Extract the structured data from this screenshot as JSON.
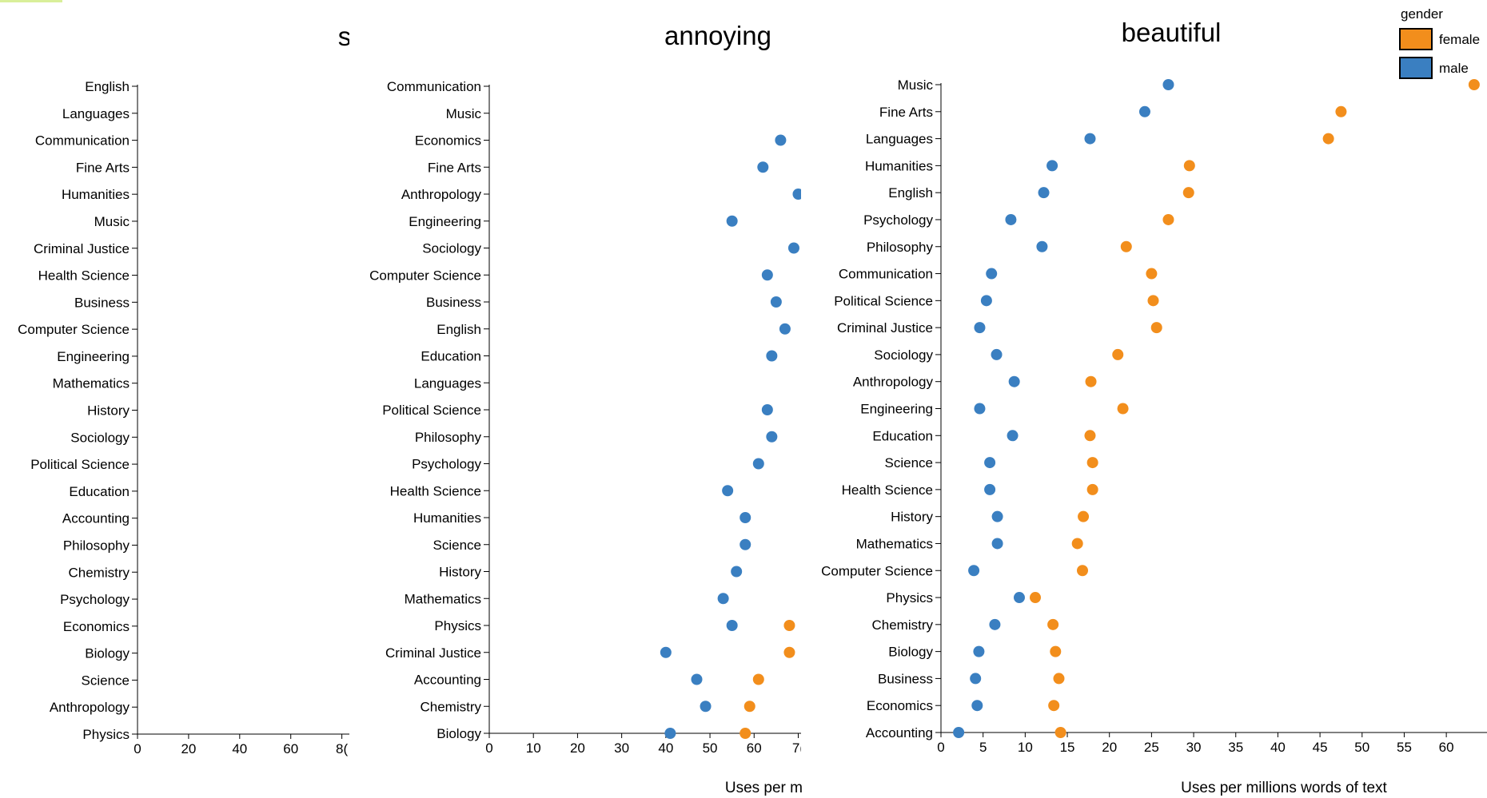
{
  "legend": {
    "title": "gender",
    "items": [
      {
        "label": "female",
        "color": "#f28e1c"
      },
      {
        "label": "male",
        "color": "#3a7fc1"
      }
    ]
  },
  "chart_data": [
    {
      "type": "scatter",
      "title": "s",
      "xlabel": "",
      "ylabel": "",
      "xlim": [
        0,
        82
      ],
      "xticks": [
        0,
        20,
        40,
        60,
        "8("
      ],
      "grid": false,
      "categories": [
        "English",
        "Languages",
        "Communication",
        "Fine Arts",
        "Humanities",
        "Music",
        "Criminal Justice",
        "Health Science",
        "Business",
        "Computer Science",
        "Engineering",
        "Mathematics",
        "History",
        "Sociology",
        "Political Science",
        "Education",
        "Accounting",
        "Philosophy",
        "Chemistry",
        "Psychology",
        "Economics",
        "Biology",
        "Science",
        "Anthropology",
        "Physics"
      ],
      "series": [
        {
          "name": "male",
          "color": "#3a7fc1",
          "values": [
            null,
            null,
            null,
            null,
            null,
            null,
            null,
            null,
            null,
            null,
            null,
            null,
            null,
            null,
            null,
            null,
            null,
            null,
            null,
            null,
            null,
            null,
            null,
            null,
            null
          ]
        },
        {
          "name": "female",
          "color": "#f28e1c",
          "values": [
            null,
            null,
            null,
            null,
            null,
            null,
            null,
            null,
            null,
            null,
            null,
            null,
            null,
            null,
            null,
            null,
            null,
            null,
            null,
            null,
            null,
            null,
            null,
            null,
            null
          ]
        }
      ]
    },
    {
      "type": "scatter",
      "title": "annoying",
      "xlabel": "Uses per m",
      "ylabel": "",
      "xlim": [
        0,
        71
      ],
      "xticks": [
        0,
        10,
        20,
        30,
        40,
        50,
        60,
        "7("
      ],
      "grid": false,
      "categories": [
        "Communication",
        "Music",
        "Economics",
        "Fine Arts",
        "Anthropology",
        "Engineering",
        "Sociology",
        "Computer Science",
        "Business",
        "English",
        "Education",
        "Languages",
        "Political Science",
        "Philosophy",
        "Psychology",
        "Health Science",
        "Humanities",
        "Science",
        "History",
        "Mathematics",
        "Physics",
        "Criminal Justice",
        "Accounting",
        "Chemistry",
        "Biology"
      ],
      "series": [
        {
          "name": "male",
          "color": "#3a7fc1",
          "values": [
            null,
            null,
            66,
            62,
            70,
            55,
            69,
            63,
            65,
            67,
            64,
            null,
            63,
            64,
            61,
            54,
            58,
            58,
            56,
            53,
            55,
            40,
            47,
            49,
            41
          ]
        },
        {
          "name": "female",
          "color": "#f28e1c",
          "values": [
            null,
            null,
            null,
            null,
            null,
            null,
            null,
            null,
            null,
            null,
            null,
            null,
            null,
            null,
            null,
            null,
            null,
            null,
            null,
            null,
            68,
            68,
            61,
            59,
            58
          ]
        }
      ]
    },
    {
      "type": "scatter",
      "title": "beautiful",
      "xlabel": "Uses per millions words of text",
      "ylabel": "",
      "xlim": [
        0,
        63.5
      ],
      "xticks": [
        0,
        5,
        10,
        15,
        20,
        25,
        30,
        35,
        40,
        45,
        50,
        55,
        60
      ],
      "grid": false,
      "categories": [
        "Music",
        "Fine Arts",
        "Languages",
        "Humanities",
        "English",
        "Psychology",
        "Philosophy",
        "Communication",
        "Political Science",
        "Criminal Justice",
        "Sociology",
        "Anthropology",
        "Engineering",
        "Education",
        "Science",
        "Health Science",
        "History",
        "Mathematics",
        "Computer Science",
        "Physics",
        "Chemistry",
        "Biology",
        "Business",
        "Economics",
        "Accounting"
      ],
      "series": [
        {
          "name": "male",
          "color": "#3a7fc1",
          "values": [
            27,
            24.2,
            17.7,
            13.2,
            12.2,
            8.3,
            12,
            6,
            5.4,
            4.6,
            6.6,
            8.7,
            4.6,
            8.5,
            5.8,
            5.8,
            6.7,
            6.7,
            3.9,
            9.3,
            6.4,
            4.5,
            4.1,
            4.3,
            2.1
          ]
        },
        {
          "name": "female",
          "color": "#f28e1c",
          "values": [
            63.3,
            47.5,
            46,
            29.5,
            29.4,
            27,
            22,
            25,
            25.2,
            25.6,
            21,
            17.8,
            21.6,
            17.7,
            18,
            18,
            16.9,
            16.2,
            16.8,
            11.2,
            13.3,
            13.6,
            14,
            13.4,
            14.2
          ]
        }
      ]
    }
  ]
}
